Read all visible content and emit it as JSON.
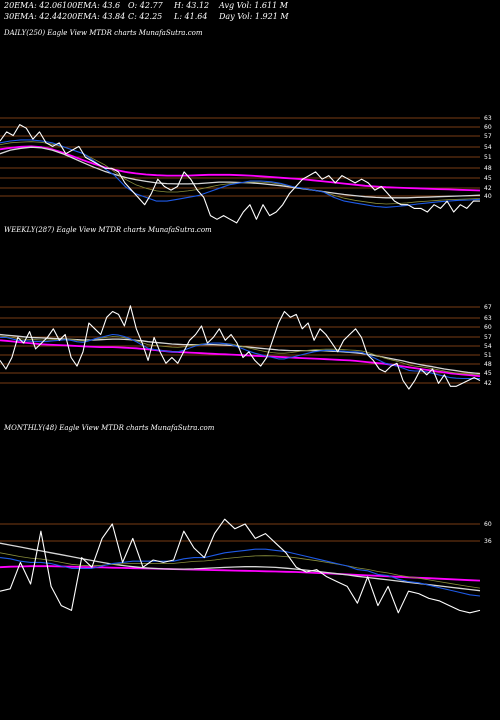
{
  "stats": {
    "row1": [
      "20EMA: 42.06",
      "100EMA: 43.6",
      "O: 42.77",
      "H: 43.12",
      "Avg Vol: 1.611 M"
    ],
    "row2": [
      "30EMA: 42.44",
      "200EMA: 43.84",
      "C: 42.25",
      "L: 41.64",
      "Day Vol: 1.921 M"
    ]
  },
  "chart_data": [
    {
      "type": "line",
      "title": "DAILY(250) Eagle   View  MTDR charts MunafaSutra.com",
      "ylabels": [
        "63",
        "60",
        "57",
        "54",
        "51",
        "48",
        "45",
        "42",
        "40"
      ],
      "colors": {
        "price": "#ffffff",
        "ema20": "#1e5ae6",
        "ema30": "#8a8f3c",
        "ema100": "#d6d6d6",
        "ema200": "#ff00ff",
        "grid": "#a0521a"
      },
      "series": [
        {
          "name": "price",
          "values": [
            57.5,
            60,
            59,
            62,
            61,
            58,
            60,
            57,
            56,
            57,
            54,
            55,
            56,
            53,
            52,
            51,
            50,
            50,
            49,
            46,
            44,
            42,
            40,
            43,
            47,
            45,
            44,
            45,
            49,
            47,
            44,
            42,
            37,
            36,
            37,
            36,
            35,
            38,
            40,
            36,
            40,
            37,
            38,
            40,
            43,
            45,
            47,
            48,
            49,
            47,
            48,
            46,
            48,
            47,
            46,
            47,
            46,
            44,
            45,
            43,
            41,
            40,
            40,
            39,
            39,
            38,
            40,
            39,
            41,
            38,
            40,
            39,
            41,
            41
          ]
        },
        {
          "name": "ema20",
          "values": [
            57,
            57.5,
            57.8,
            57.8,
            57.5,
            57,
            56,
            55,
            54,
            52,
            50,
            48,
            45,
            43,
            42,
            41,
            41,
            41.5,
            42,
            42.5,
            43.5,
            44.5,
            45.5,
            46,
            46.5,
            46.5,
            46.3,
            45.8,
            45,
            44.5,
            44,
            43.5,
            42,
            41,
            40.5,
            40,
            39.5,
            39.3,
            39.5,
            39.8,
            40.2,
            40.5,
            40.8,
            41,
            41.2,
            41.3,
            41.5
          ]
        },
        {
          "name": "ema30",
          "values": [
            56.5,
            57,
            57.2,
            57.3,
            57.1,
            56.6,
            55.9,
            55,
            54,
            52.5,
            51,
            49,
            47,
            45.5,
            44.5,
            43.8,
            43.5,
            43.5,
            43.8,
            44.2,
            44.8,
            45.4,
            45.8,
            46,
            46.2,
            46.2,
            46,
            45.6,
            45,
            44.5,
            44,
            43.5,
            42.6,
            41.8,
            41.2,
            40.8,
            40.4,
            40.2,
            40.3,
            40.5,
            40.8,
            41,
            41.2,
            41.4,
            41.5,
            41.6,
            41.7
          ]
        },
        {
          "name": "ema100",
          "values": [
            54,
            55,
            55.5,
            55.8,
            55.6,
            55,
            54,
            52.8,
            51.5,
            50.3,
            49.2,
            48.3,
            47.5,
            46.9,
            46.4,
            46,
            45.8,
            45.7,
            45.7,
            45.8,
            46,
            46.2,
            46.2,
            46.1,
            46,
            45.8,
            45.5,
            45.2,
            44.8,
            44.4,
            44,
            43.6,
            43.2,
            42.8,
            42.5,
            42.2,
            42,
            41.9,
            41.9,
            41.9,
            42,
            42.1,
            42.2,
            42.3,
            42.4,
            42.5,
            42.6
          ]
        },
        {
          "name": "ema200",
          "values": [
            55.2,
            55.6,
            55.9,
            56,
            55.8,
            55.2,
            54.3,
            53.3,
            52.2,
            51.2,
            50.3,
            49.6,
            49,
            48.6,
            48.3,
            48.1,
            48,
            48,
            48,
            48.1,
            48.2,
            48.2,
            48.2,
            48.1,
            48,
            47.8,
            47.6,
            47.4,
            47.2,
            47,
            46.7,
            46.4,
            46.1,
            45.8,
            45.5,
            45.2,
            45,
            44.8,
            44.7,
            44.6,
            44.5,
            44.4,
            44.3,
            44.2,
            44.1,
            44,
            43.9
          ]
        }
      ]
    },
    {
      "type": "line",
      "title": "WEEKLY(287) Eagle   View  MTDR charts MunafaSutra.com",
      "ylabels": [
        "67",
        "63",
        "60",
        "57",
        "54",
        "51",
        "48",
        "45",
        "42"
      ],
      "colors": {
        "price": "#ffffff",
        "ema20": "#1e5ae6",
        "ema30": "#8a8f3c",
        "ema100": "#d6d6d6",
        "ema200": "#ff00ff",
        "grid": "#a0521a"
      },
      "series": [
        {
          "name": "price",
          "values": [
            49,
            46,
            50,
            57,
            55,
            59,
            53,
            55,
            57,
            60,
            56,
            58,
            50,
            47,
            52,
            62,
            60,
            58,
            64,
            66,
            65,
            61,
            68,
            60,
            55,
            49,
            57,
            52,
            48,
            50,
            48,
            52,
            56,
            58,
            61,
            55,
            57,
            60,
            56,
            58,
            55,
            50,
            52,
            49,
            47,
            50,
            56,
            62,
            66,
            64,
            65,
            60,
            62,
            56,
            60,
            58,
            55,
            52,
            56,
            58,
            60,
            57,
            51,
            49,
            46,
            45,
            47,
            48,
            42,
            39,
            42,
            46,
            44,
            46,
            41,
            44,
            40,
            40,
            41,
            42,
            43,
            42
          ]
        },
        {
          "name": "ema20",
          "values": [
            57,
            57,
            56.5,
            56,
            55.8,
            55.7,
            55.6,
            55.5,
            55.6,
            55.8,
            56,
            56.2,
            56,
            55.5,
            55.3,
            55.8,
            56.5,
            57,
            57.5,
            58,
            57.8,
            57.3,
            56.5,
            55.5,
            54.3,
            53.2,
            52.8,
            52.5,
            52.2,
            52,
            52,
            52.5,
            53.3,
            54,
            54.5,
            54.8,
            55,
            55,
            54.8,
            54.5,
            53.8,
            53,
            52.2,
            51.5,
            51,
            50.5,
            50,
            49.5,
            49.5,
            50,
            50.5,
            51,
            51.5,
            52,
            52.3,
            52.5,
            52.5,
            52.3,
            52.2,
            52,
            52,
            51.8,
            51,
            50,
            49,
            48,
            47.5,
            47,
            46.3,
            45.5,
            45.3,
            45.3,
            45,
            44.5,
            44,
            43.5,
            43,
            42.8,
            42.7,
            42.7,
            42.7,
            42.7
          ]
        },
        {
          "name": "ema30",
          "values": [
            57.5,
            57.3,
            57,
            56.6,
            56.4,
            56.3,
            56.2,
            56.1,
            56.1,
            56.2,
            56.3,
            56.4,
            56.3,
            56,
            55.8,
            56,
            56.4,
            56.7,
            57,
            57.3,
            57.2,
            56.9,
            56.4,
            55.8,
            55.1,
            54.5,
            54.2,
            54,
            53.8,
            53.6,
            53.5,
            53.7,
            54.1,
            54.4,
            54.7,
            54.9,
            55,
            55,
            54.9,
            54.7,
            54.3,
            53.8,
            53.3,
            52.8,
            52.4,
            52,
            51.7,
            51.5,
            51.5,
            51.7,
            52,
            52.3,
            52.5,
            52.7,
            52.8,
            52.9,
            52.9,
            52.8,
            52.7,
            52.6,
            52.5,
            52.3,
            51.8,
            51.1,
            50.4,
            49.7,
            49.2,
            48.7,
            48.1,
            47.4,
            47,
            46.8,
            46.5,
            46.1,
            45.7,
            45.3,
            44.9,
            44.6,
            44.4,
            44.3,
            44.2,
            44.1
          ]
        },
        {
          "name": "ema100",
          "values": [
            58,
            57.8,
            57.6,
            57.4,
            57.2,
            57,
            56.9,
            56.8,
            56.7,
            56.6,
            56.5,
            56.4,
            56.3,
            56.2,
            56.1,
            56.1,
            56.1,
            56.2,
            56.3,
            56.4,
            56.4,
            56.3,
            56.2,
            56,
            55.8,
            55.5,
            55.3,
            55.1,
            54.9,
            54.7,
            54.6,
            54.5,
            54.5,
            54.5,
            54.5,
            54.5,
            54.5,
            54.4,
            54.3,
            54.2,
            54,
            53.8,
            53.6,
            53.4,
            53.2,
            53,
            52.8,
            52.6,
            52.5,
            52.4,
            52.4,
            52.4,
            52.4,
            52.4,
            52.4,
            52.3,
            52.2,
            52.1,
            52,
            51.8,
            51.6,
            51.4,
            51.1,
            50.8,
            50.4,
            50,
            49.6,
            49.2,
            48.8,
            48.3,
            47.9,
            47.5,
            47.1,
            46.8,
            46.4,
            46,
            45.7,
            45.4,
            45.1,
            44.8,
            44.6,
            44.4
          ]
        },
        {
          "name": "ema200",
          "values": [
            56,
            55.8,
            55.6,
            55.4,
            55.2,
            55,
            54.8,
            54.6,
            54.5,
            54.4,
            54.3,
            54.2,
            54.1,
            54,
            53.9,
            53.8,
            53.7,
            53.6,
            53.6,
            53.6,
            53.5,
            53.4,
            53.3,
            53.2,
            53,
            52.8,
            52.6,
            52.4,
            52.2,
            52,
            51.9,
            51.8,
            51.7,
            51.6,
            51.5,
            51.4,
            51.3,
            51.2,
            51.1,
            51,
            50.9,
            50.8,
            50.7,
            50.6,
            50.5,
            50.4,
            50.3,
            50.2,
            50.1,
            50,
            49.9,
            49.8,
            49.7,
            49.6,
            49.5,
            49.4,
            49.3,
            49.2,
            49.1,
            49,
            48.8,
            48.6,
            48.4,
            48.2,
            48,
            47.8,
            47.5,
            47.2,
            46.9,
            46.6,
            46.3,
            46,
            45.7,
            45.4,
            45.1,
            44.8,
            44.5,
            44.3,
            44.1,
            43.9,
            43.7,
            43.5
          ]
        }
      ]
    },
    {
      "type": "line",
      "title": "MONTHLY(48) Eagle   View  MTDR charts MunafaSutra.com",
      "ylabels": [
        "60",
        "36"
      ],
      "colors": {
        "price": "#ffffff",
        "ema20": "#1e5ae6",
        "ema30": "#8a8f3c",
        "ema100": "#d6d6d6",
        "ema200": "#ff00ff",
        "grid": "#a0521a"
      },
      "series": [
        {
          "name": "price",
          "values": [
            30,
            31,
            42,
            33,
            55,
            32,
            24,
            22,
            44,
            40,
            52,
            58,
            42,
            52,
            40,
            43,
            42,
            43,
            55,
            48,
            44,
            54,
            60,
            56,
            58,
            52,
            54,
            50,
            46,
            40,
            38,
            39,
            36,
            34,
            32,
            25,
            36,
            24,
            32,
            21,
            30,
            29,
            27,
            26,
            24,
            22,
            21,
            22
          ]
        },
        {
          "name": "ema20",
          "values": [
            44,
            43.5,
            42.5,
            42,
            42,
            41.5,
            40.5,
            39.5,
            39.5,
            39.5,
            40.5,
            41.5,
            42,
            42.5,
            42.5,
            42.5,
            42.5,
            42.5,
            43.5,
            44,
            44,
            45,
            46,
            46.5,
            47,
            47.5,
            47.5,
            47,
            46.5,
            45.5,
            44.5,
            43.5,
            42.5,
            41.5,
            40.5,
            39,
            38.5,
            37,
            36.5,
            35,
            34,
            33.5,
            32.5,
            31.5,
            30.5,
            29.5,
            28.5,
            28
          ]
        },
        {
          "name": "ema30",
          "values": [
            46,
            45.2,
            44.4,
            43.8,
            43.4,
            42.8,
            42,
            41.2,
            40.8,
            40.6,
            40.8,
            41.2,
            41.4,
            41.6,
            41.6,
            41.6,
            41.6,
            41.6,
            42,
            42.4,
            42.6,
            43,
            43.6,
            44,
            44.4,
            44.7,
            44.8,
            44.7,
            44.4,
            43.9,
            43.3,
            42.7,
            42,
            41.3,
            40.6,
            39.7,
            39.1,
            38.2,
            37.6,
            36.7,
            36,
            35.4,
            34.7,
            34,
            33.3,
            32.6,
            31.9,
            31.3
          ]
        },
        {
          "name": "ema100",
          "values": [
            50,
            49.2,
            48.4,
            47.6,
            46.8,
            46,
            45.2,
            44.4,
            43.6,
            42.8,
            42,
            41.3,
            40.7,
            40.2,
            39.8,
            39.5,
            39.3,
            39.2,
            39.2,
            39.3,
            39.5,
            39.7,
            39.9,
            40.1,
            40.2,
            40.2,
            40.1,
            39.9,
            39.6,
            39.2,
            38.8,
            38.3,
            37.8,
            37.3,
            36.8,
            36.2,
            35.7,
            35.2,
            34.7,
            34.2,
            33.7,
            33.2,
            32.7,
            32.2,
            31.7,
            31.2,
            30.7,
            30.2
          ]
        },
        {
          "name": "ema200",
          "values": [
            40,
            40.2,
            40.3,
            40.4,
            40.4,
            40.4,
            40.3,
            40.2,
            40.1,
            40,
            39.9,
            39.8,
            39.7,
            39.6,
            39.5,
            39.4,
            39.3,
            39.2,
            39.1,
            39,
            38.9,
            38.8,
            38.7,
            38.6,
            38.5,
            38.4,
            38.3,
            38.2,
            38.1,
            38,
            37.8,
            37.6,
            37.4,
            37.2,
            37,
            36.8,
            36.6,
            36.4,
            36.2,
            36,
            35.8,
            35.6,
            35.4,
            35.2,
            35,
            34.8,
            34.6,
            34.4
          ]
        }
      ]
    }
  ]
}
